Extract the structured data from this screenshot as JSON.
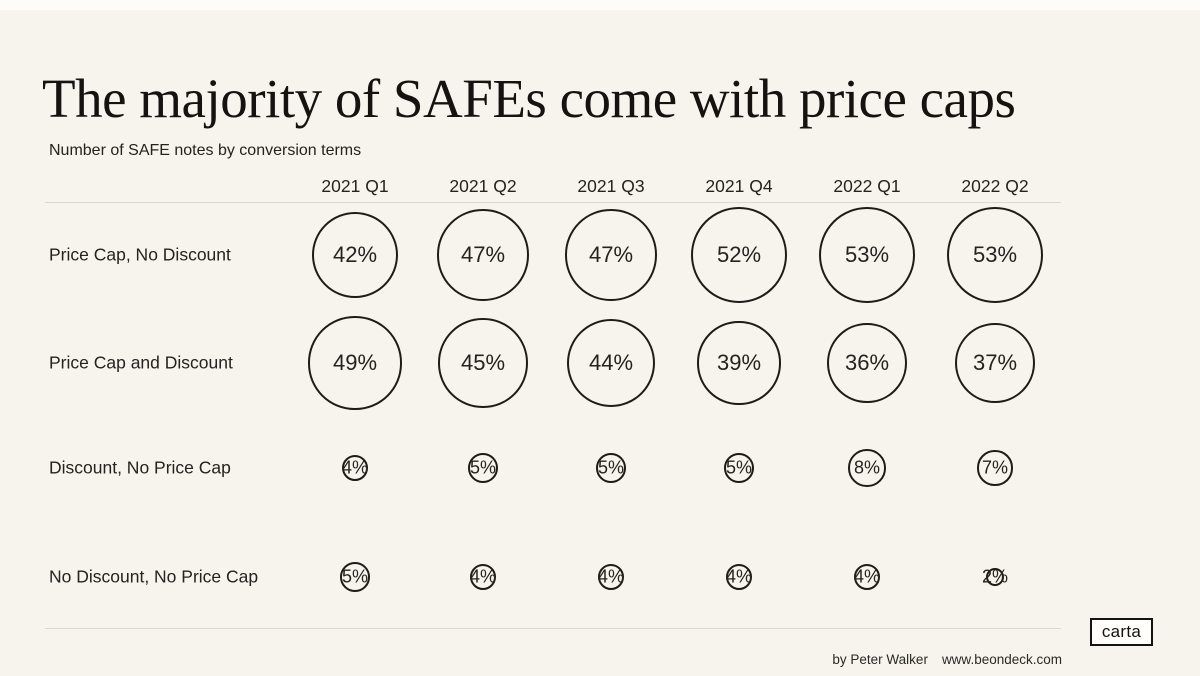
{
  "page": {
    "background": "#f7f4ee"
  },
  "chart_data": {
    "type": "bubble",
    "title": "The majority of SAFEs come with price caps",
    "subtitle": "Number of SAFE notes by conversion terms",
    "categories": [
      "2021 Q1",
      "2021 Q2",
      "2021 Q3",
      "2021 Q4",
      "2022 Q1",
      "2022 Q2"
    ],
    "series": [
      {
        "name": "Price Cap, No Discount",
        "values": [
          42,
          47,
          47,
          52,
          53,
          53
        ]
      },
      {
        "name": "Price Cap and Discount",
        "values": [
          49,
          45,
          44,
          39,
          36,
          37
        ]
      },
      {
        "name": "Discount, No Price Cap",
        "values": [
          4,
          5,
          5,
          5,
          8,
          7
        ]
      },
      {
        "name": "No Discount, No Price Cap",
        "values": [
          5,
          4,
          4,
          4,
          4,
          2
        ]
      }
    ],
    "value_unit": "%",
    "layout_hints": {
      "grid": "off",
      "legend": "none",
      "bubble_sizing": "diameter proportional to sqrt(value)",
      "circle_stroke_color": "#1d1c18",
      "divider_color": "#ddd9d1"
    }
  },
  "footer": {
    "byline": "by Peter Walker",
    "website": "www.beondeck.com",
    "logo_label": "carta"
  }
}
